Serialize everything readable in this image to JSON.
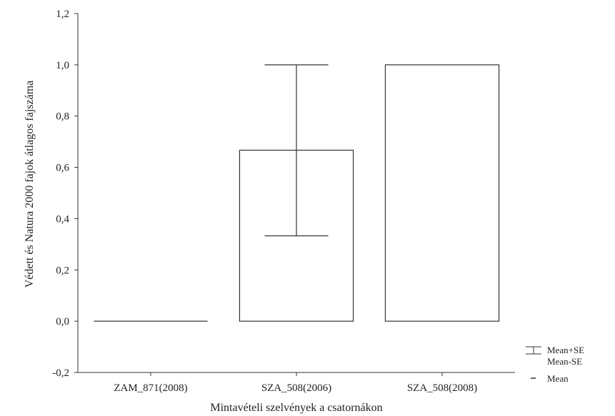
{
  "chart_data": {
    "type": "bar",
    "categories": [
      "ZAM_871(2008)",
      "SZA_508(2006)",
      "SZA_508(2008)"
    ],
    "values": [
      0.0,
      0.667,
      1.0
    ],
    "error_upper": [
      0.0,
      1.0,
      1.0
    ],
    "error_lower": [
      0.0,
      0.333,
      1.0
    ],
    "ylim": [
      -0.2,
      1.2
    ],
    "yticks": [
      "-0,2",
      "0,0",
      "0,2",
      "0,4",
      "0,6",
      "0,8",
      "1,0",
      "1,2"
    ],
    "ytick_values": [
      -0.2,
      0.0,
      0.2,
      0.4,
      0.6,
      0.8,
      1.0,
      1.2
    ],
    "xlabel": "Mintavételi szelvények a csatornákon",
    "ylabel": "Védett és Natura 2000 fajok átlagos fajszáma",
    "legend": {
      "placement": "bottom-right",
      "entries": [
        {
          "symbol": "whisker",
          "label": "Mean+SE"
        },
        {
          "symbol": "none",
          "label": "Mean-SE"
        },
        {
          "symbol": "dash",
          "label": "Mean"
        }
      ]
    },
    "grid": false
  }
}
